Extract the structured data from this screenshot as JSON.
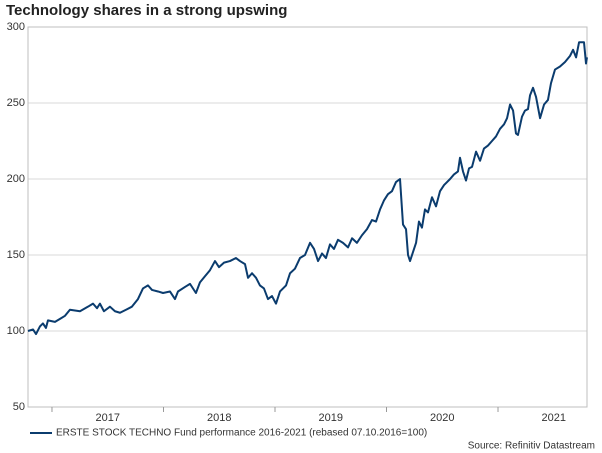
{
  "chart_data": {
    "type": "line",
    "title": "Technology shares in a strong upswing",
    "source": "Source: Refinitiv Datastream",
    "x": [
      2016.785,
      2016.83,
      2016.857,
      2016.892,
      2016.919,
      2016.946,
      2016.964,
      2017.027,
      2017.072,
      2017.117,
      2017.161,
      2017.251,
      2017.323,
      2017.368,
      2017.404,
      2017.43,
      2017.466,
      2017.52,
      2017.565,
      2017.61,
      2017.664,
      2017.717,
      2017.771,
      2017.816,
      2017.861,
      2017.897,
      2017.951,
      2017.996,
      2018.058,
      2018.103,
      2018.13,
      2018.193,
      2018.238,
      2018.291,
      2018.327,
      2018.372,
      2018.417,
      2018.462,
      2018.498,
      2018.543,
      2018.596,
      2018.65,
      2018.686,
      2018.731,
      2018.758,
      2018.794,
      2018.83,
      2018.865,
      2018.901,
      2018.937,
      2018.973,
      2019.009,
      2019.045,
      2019.099,
      2019.135,
      2019.179,
      2019.224,
      2019.269,
      2019.314,
      2019.35,
      2019.386,
      2019.422,
      2019.457,
      2019.493,
      2019.529,
      2019.565,
      2019.61,
      2019.655,
      2019.691,
      2019.735,
      2019.78,
      2019.825,
      2019.87,
      2019.906,
      2019.942,
      2019.978,
      2020.013,
      2020.049,
      2020.085,
      2020.121,
      2020.148,
      2020.175,
      2020.193,
      2020.211,
      2020.238,
      2020.265,
      2020.291,
      2020.318,
      2020.345,
      2020.372,
      2020.408,
      2020.444,
      2020.48,
      2020.516,
      2020.543,
      2020.57,
      2020.605,
      2020.641,
      2020.659,
      2020.686,
      2020.713,
      2020.74,
      2020.767,
      2020.803,
      2020.839,
      2020.874,
      2020.91,
      2020.946,
      2020.982,
      2021.018,
      2021.054,
      2021.081,
      2021.108,
      2021.135,
      2021.161,
      2021.179,
      2021.215,
      2021.242,
      2021.269,
      2021.287,
      2021.314,
      2021.341,
      2021.377,
      2021.413,
      2021.448,
      2021.475,
      2021.511,
      2021.556,
      2021.601,
      2021.646,
      2021.673,
      2021.7,
      2021.727,
      2021.753,
      2021.771,
      2021.789,
      2021.798
    ],
    "series": [
      {
        "name": "ERSTE STOCK TECHNO Fund performance 2016-2021 (rebased 07.10.2016=100)",
        "color": "#0b3c6e",
        "values": [
          100,
          101,
          98,
          103,
          105,
          102,
          107,
          106,
          108,
          110,
          114,
          113,
          116,
          118,
          115,
          118,
          113,
          116,
          113,
          112,
          114,
          116,
          121,
          128,
          130,
          127,
          126,
          125,
          126,
          121,
          126,
          129,
          131,
          125,
          132,
          136,
          140,
          146,
          142,
          145,
          146,
          148,
          146,
          144,
          135,
          138,
          135,
          130,
          128,
          121,
          123,
          118,
          126,
          130,
          138,
          141,
          148,
          150,
          158,
          154,
          146,
          151,
          148,
          157,
          154,
          160,
          158,
          155,
          161,
          158,
          163,
          167,
          173,
          172,
          180,
          186,
          190,
          192,
          198,
          200,
          170,
          167,
          150,
          146,
          152,
          158,
          172,
          168,
          180,
          178,
          188,
          182,
          192,
          196,
          198,
          200,
          203,
          205,
          214,
          205,
          199,
          207,
          208,
          218,
          212,
          220,
          222,
          225,
          228,
          233,
          236,
          240,
          249,
          245,
          230,
          229,
          241,
          245,
          246,
          255,
          260,
          254,
          240,
          249,
          252,
          263,
          272,
          274,
          277,
          281,
          285,
          280,
          290,
          290,
          290,
          276,
          280
        ]
      }
    ],
    "xlim": [
      2016.785,
      2021.798
    ],
    "xticks": [
      2017,
      2018,
      2019,
      2020,
      2021
    ],
    "ylim": [
      50,
      300
    ],
    "yticks": [
      50,
      100,
      150,
      200,
      250,
      300
    ],
    "grid": true
  }
}
